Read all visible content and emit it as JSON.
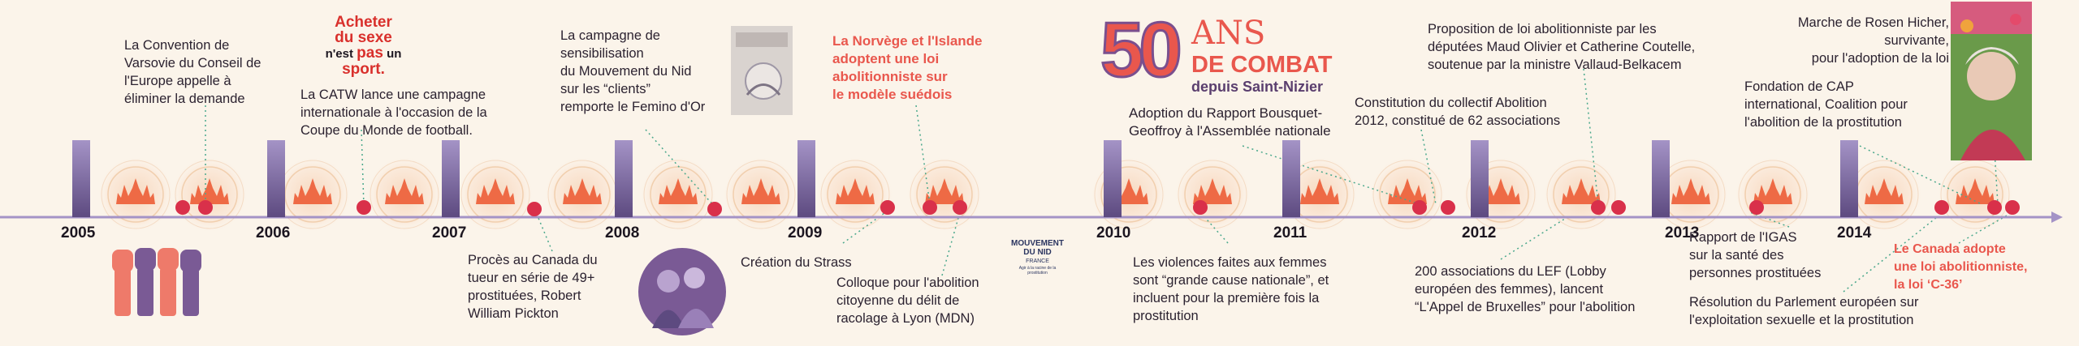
{
  "header": {
    "anniversary_number": "50",
    "anniversary_ans": "ANS",
    "anniversary_combat": "DE COMBAT",
    "anniversary_depuis": "depuis Saint-Nizier"
  },
  "poster": {
    "line1": "Acheter",
    "line2": "du sexe",
    "line3a": "n'est ",
    "line3b": "pas",
    "line3c": " un",
    "line4": "sport."
  },
  "logo": {
    "line1": "MOUVEMENT",
    "line2": "DU NID",
    "line3": "FRANCE",
    "tagline": "Agir à la racine de la prostitution"
  },
  "years": [
    "2005",
    "2006",
    "2007",
    "2008",
    "2009",
    "2010",
    "2011",
    "2012",
    "2013",
    "2014"
  ],
  "events_top": [
    {
      "id": "varsovie",
      "text": "La Convention de\nVarsovie du Conseil de\nl'Europe appelle à\néliminer la demande"
    },
    {
      "id": "catw",
      "text": "La CATW lance une campagne\ninternationale  à l'occasion de la\nCoupe du Monde de football."
    },
    {
      "id": "clients",
      "text": "La campagne de\nsensibilisation\ndu Mouvement du Nid\nsur les “clients”\nremporte le Femino d'Or"
    },
    {
      "id": "norvege",
      "text": "La Norvège et l'Islande\nadoptent une loi\nabolitionniste sur\nle modèle suédois"
    },
    {
      "id": "bousquet",
      "text": "Adoption du Rapport Bousquet-\nGeoffroy à l'Assemblée nationale"
    },
    {
      "id": "collectif",
      "text": "Constitution du collectif Abolition\n2012, constitué de 62 associations"
    },
    {
      "id": "proposition",
      "text": "Proposition de loi abolitionniste  par les\ndéputées Maud Olivier et Catherine Coutelle,\nsoutenue par la ministre Vallaud-Belkacem"
    },
    {
      "id": "cap",
      "text": "Fondation de CAP\ninternational, Coalition pour\nl'abolition de la prostitution"
    },
    {
      "id": "hicher",
      "text": "Marche de Rosen Hicher,\nsurvivante,\npour l'adoption de la loi"
    }
  ],
  "events_bottom": [
    {
      "id": "pickton",
      "text": "Procès au Canada du\ntueur en série de 49+\nprostituées, Robert\nWilliam Pickton"
    },
    {
      "id": "strass",
      "text": "Création du Strass"
    },
    {
      "id": "colloque",
      "text": "Colloque pour l'abolition\ncitoyenne du délit de\nracolage à Lyon (MDN)"
    },
    {
      "id": "violences",
      "text": "Les violences faites aux femmes\nsont “grande cause nationale”, et\nincluent pour la première fois la\nprostitution"
    },
    {
      "id": "lef",
      "text": "200 associations du LEF (Lobby\neuropéen des femmes), lancent\n“L'Appel de Bruxelles” pour l'abolition"
    },
    {
      "id": "igas",
      "text": "Rapport de l'IGAS\nsur la santé des\npersonnes prostituées"
    },
    {
      "id": "parlement",
      "text": "Résolution du Parlement européen sur\nl'exploitation sexuelle et la prostitution"
    },
    {
      "id": "canada",
      "text": "Le Canada adopte\nune loi abolitionniste,\nla loi ‘C-36’"
    }
  ],
  "colors": {
    "accent_red": "#e9574d",
    "purple": "#7a5a95",
    "axis": "#9b8bc0",
    "flame": "#ee6a45"
  },
  "pictures": {
    "fists_icon": "raised-fists",
    "women_photo": "women-protest-photo",
    "campaign_photo": "clients-campaign-poster",
    "rosen_photo": "rosen-hicher-photo"
  }
}
